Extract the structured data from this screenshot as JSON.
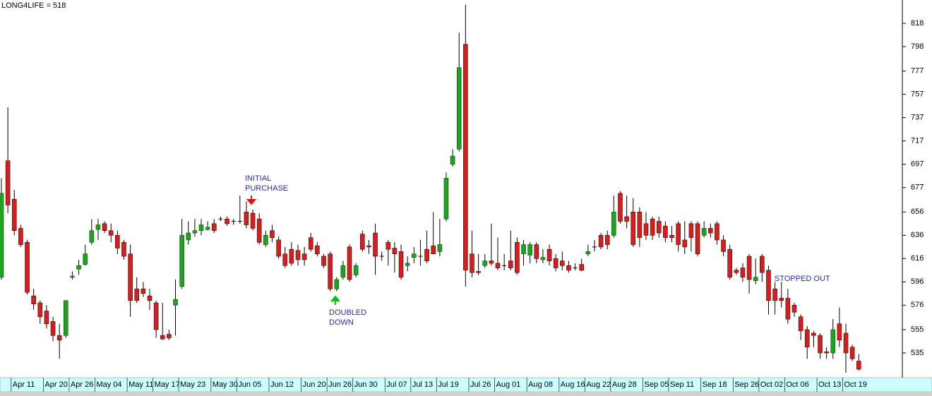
{
  "chart_data": {
    "type": "candlestick",
    "title": "LONG4LIFE = 518",
    "categories": [
      null,
      null,
      "Apr 11",
      null,
      null,
      null,
      null,
      "Apr 20",
      null,
      null,
      null,
      "Apr 26",
      null,
      null,
      null,
      "May 04",
      null,
      null,
      null,
      null,
      "May 11",
      null,
      null,
      null,
      "May 17",
      null,
      null,
      null,
      "May 23",
      null,
      null,
      null,
      null,
      "May 30",
      null,
      null,
      null,
      "Jun 05",
      null,
      null,
      null,
      null,
      "Jun 12",
      null,
      null,
      null,
      null,
      "Jun 20",
      null,
      null,
      null,
      "Jun 26",
      null,
      null,
      null,
      "Jun 30",
      null,
      null,
      null,
      null,
      "Jul 07",
      null,
      null,
      null,
      "Jul 13",
      null,
      null,
      null,
      "Jul 19",
      null,
      null,
      null,
      null,
      "Jul 26",
      null,
      null,
      null,
      "Aug 01",
      null,
      null,
      null,
      null,
      "Aug 08",
      null,
      null,
      null,
      null,
      "Aug 16",
      null,
      null,
      null,
      "Aug 22",
      null,
      null,
      null,
      "Aug 28",
      null,
      null,
      null,
      null,
      "Sep 05",
      null,
      null,
      null,
      "Sep 11",
      null,
      null,
      null,
      null,
      "Sep 18",
      null,
      null,
      null,
      null,
      "Sep 26",
      null,
      null,
      null,
      "Oct 02",
      null,
      null,
      null,
      "Oct 06",
      null,
      null,
      null,
      null,
      "Oct 13",
      null,
      null,
      null,
      "Oct 19",
      null,
      null
    ],
    "open": [
      600,
      700,
      667,
      642,
      630,
      584,
      578,
      571,
      562,
      550,
      550,
      600,
      607,
      611,
      630,
      641,
      646,
      640,
      636,
      630,
      620,
      590,
      590,
      584,
      578,
      550,
      551,
      576,
      592,
      632,
      638,
      640,
      641,
      646,
      650,
      650,
      648,
      648,
      656,
      655,
      650,
      628,
      640,
      632,
      620,
      624,
      623,
      620,
      634,
      627,
      618,
      620,
      590,
      600,
      626,
      602,
      637,
      627,
      638,
      618,
      630,
      625,
      622,
      610,
      617,
      618,
      624,
      627,
      622,
      650,
      697,
      710,
      800,
      620,
      605,
      610,
      614,
      612,
      610,
      614,
      630,
      620,
      619,
      628,
      615,
      624,
      616,
      614,
      610,
      608,
      611,
      620,
      626,
      636,
      636,
      636,
      672,
      652,
      656,
      656,
      646,
      650,
      648,
      644,
      636,
      646,
      632,
      646,
      646,
      636,
      642,
      646,
      632,
      624,
      606,
      608,
      618,
      597,
      618,
      606,
      590,
      582,
      582,
      576,
      566,
      555,
      552,
      550,
      536,
      535,
      560,
      552,
      540,
      528
    ],
    "high": [
      685,
      746,
      675,
      645,
      632,
      590,
      580,
      576,
      566,
      560,
      580,
      605,
      615,
      628,
      650,
      650,
      648,
      646,
      640,
      632,
      628,
      600,
      596,
      590,
      580,
      578,
      555,
      598,
      650,
      648,
      650,
      650,
      648,
      650,
      652,
      652,
      650,
      670,
      665,
      658,
      655,
      640,
      645,
      635,
      626,
      630,
      628,
      626,
      638,
      630,
      620,
      622,
      600,
      614,
      628,
      612,
      640,
      632,
      646,
      622,
      632,
      630,
      628,
      618,
      626,
      632,
      640,
      656,
      650,
      690,
      710,
      810,
      834,
      640,
      620,
      620,
      646,
      634,
      620,
      640,
      634,
      632,
      630,
      630,
      624,
      628,
      620,
      622,
      614,
      612,
      616,
      628,
      632,
      638,
      640,
      670,
      674,
      670,
      668,
      660,
      656,
      652,
      652,
      648,
      644,
      648,
      648,
      648,
      648,
      648,
      646,
      648,
      636,
      628,
      608,
      612,
      620,
      616,
      620,
      610,
      596,
      596,
      590,
      578,
      568,
      558,
      554,
      552,
      540,
      564,
      574,
      560,
      542,
      534
    ],
    "low": [
      598,
      655,
      636,
      626,
      585,
      572,
      560,
      556,
      545,
      530,
      548,
      598,
      602,
      610,
      628,
      632,
      638,
      630,
      620,
      615,
      566,
      578,
      583,
      572,
      548,
      546,
      546,
      550,
      590,
      628,
      635,
      636,
      640,
      638,
      648,
      644,
      645,
      646,
      642,
      640,
      628,
      626,
      630,
      616,
      608,
      610,
      610,
      610,
      622,
      618,
      608,
      588,
      588,
      598,
      596,
      600,
      622,
      620,
      602,
      614,
      610,
      604,
      598,
      605,
      612,
      610,
      612,
      620,
      618,
      648,
      695,
      708,
      592,
      600,
      602,
      608,
      610,
      606,
      606,
      606,
      602,
      610,
      612,
      612,
      612,
      610,
      605,
      606,
      604,
      606,
      605,
      618,
      622,
      624,
      624,
      634,
      646,
      642,
      626,
      626,
      632,
      632,
      634,
      630,
      630,
      622,
      620,
      622,
      618,
      634,
      634,
      628,
      618,
      598,
      602,
      596,
      586,
      594,
      596,
      568,
      568,
      574,
      560,
      566,
      546,
      530,
      540,
      530,
      530,
      530,
      540,
      518,
      528,
      520
    ],
    "close": [
      672,
      662,
      640,
      628,
      587,
      577,
      566,
      560,
      550,
      546,
      580,
      601,
      610,
      620,
      640,
      645,
      640,
      636,
      625,
      618,
      580,
      580,
      586,
      580,
      555,
      547,
      548,
      581,
      636,
      638,
      640,
      645,
      643,
      640,
      650,
      646,
      648,
      648,
      645,
      642,
      630,
      636,
      634,
      618,
      610,
      612,
      615,
      615,
      624,
      620,
      610,
      590,
      598,
      610,
      598,
      610,
      624,
      626,
      618,
      618,
      624,
      620,
      600,
      612,
      620,
      618,
      614,
      620,
      628,
      685,
      704,
      780,
      606,
      604,
      604,
      614,
      612,
      608,
      610,
      608,
      604,
      628,
      628,
      616,
      617,
      614,
      608,
      610,
      606,
      608,
      606,
      622,
      626,
      626,
      628,
      656,
      648,
      648,
      628,
      634,
      636,
      636,
      638,
      634,
      634,
      628,
      626,
      634,
      620,
      642,
      638,
      632,
      622,
      600,
      604,
      600,
      598,
      600,
      604,
      580,
      580,
      580,
      564,
      570,
      554,
      540,
      550,
      535,
      535,
      555,
      546,
      535,
      530,
      521
    ],
    "up_color": "#22a022",
    "down_color": "#cc2222",
    "ylim": [
      515,
      838
    ],
    "yticks": [
      535,
      555,
      576,
      596,
      616,
      636,
      656,
      677,
      697,
      717,
      737,
      757,
      777,
      798,
      818
    ],
    "annotations": [
      {
        "text": [
          "INITIAL",
          "PURCHASE"
        ]
      },
      {
        "text": [
          "DOUBLED",
          "DOWN"
        ]
      },
      {
        "text": [
          "STOPPED OUT"
        ]
      }
    ]
  }
}
